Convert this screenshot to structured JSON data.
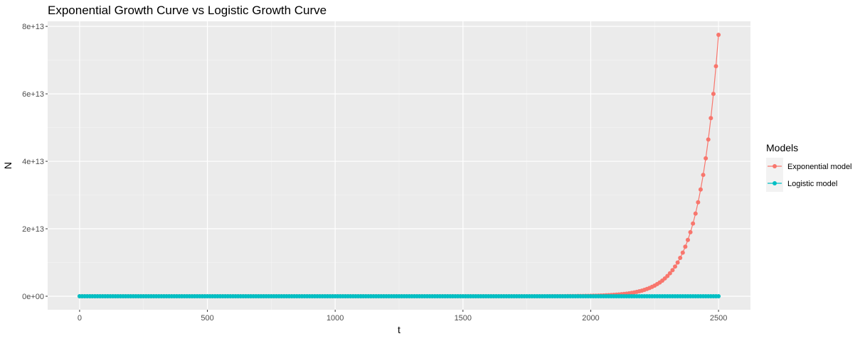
{
  "chart_data": {
    "type": "line",
    "title": "Exponential Growth Curve vs Logistic Growth Curve",
    "xlabel": "t",
    "ylabel": "N",
    "xlim": [
      -125,
      2625
    ],
    "ylim": [
      -4000000000000,
      81500000000000
    ],
    "x_ticks": [
      0,
      500,
      1000,
      1500,
      2000,
      2500
    ],
    "x_tick_labels": [
      "0",
      "500",
      "1000",
      "1500",
      "2000",
      "2500"
    ],
    "y_ticks": [
      0,
      20000000000000,
      40000000000000,
      60000000000000,
      80000000000000
    ],
    "y_tick_labels": [
      "0e+00",
      "2e+13",
      "4e+13",
      "6e+13",
      "8e+13"
    ],
    "grid": true,
    "legend": {
      "title": "Models",
      "position": "right"
    },
    "series": [
      {
        "name": "Exponential model",
        "color": "#F8766D",
        "model": "exponential",
        "x_start": 0,
        "x_end": 2500,
        "x_step": 10,
        "y_at_x_end": 77500000000000,
        "y_at_2300": 6000000000000
      },
      {
        "name": "Logistic model",
        "color": "#00BFC4",
        "model": "constant",
        "x_start": 0,
        "x_end": 2500,
        "x_step": 10,
        "y_value": 0
      }
    ]
  }
}
